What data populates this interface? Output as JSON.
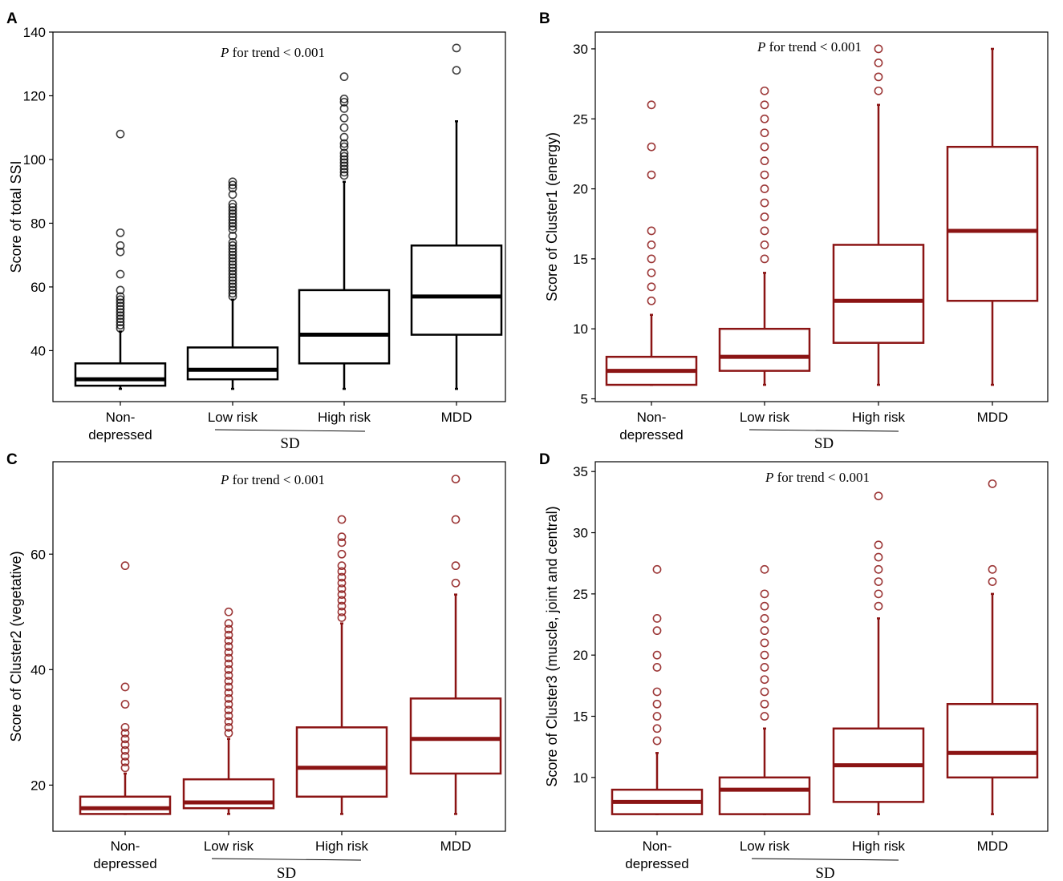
{
  "chart_data": [
    {
      "panel": "A",
      "type": "box",
      "color": "#000000",
      "ylabel": "Score of total SSI",
      "annotation": {
        "p": "P",
        "rest": " for trend < 0.001"
      },
      "ylim": [
        24,
        140
      ],
      "yticks": [
        40,
        60,
        80,
        100,
        120,
        140
      ],
      "categories": [
        "Non-\ndepressed",
        "Low risk",
        "High risk",
        "MDD"
      ],
      "group_label": "SD",
      "boxes": [
        {
          "min": 28,
          "q1": 29,
          "median": 31,
          "q3": 36,
          "max": 46,
          "outliers": [
            47,
            48,
            49,
            50,
            51,
            52,
            53,
            54,
            55,
            56,
            57,
            59,
            64,
            71,
            73,
            77,
            108
          ]
        },
        {
          "min": 28,
          "q1": 31,
          "median": 34,
          "q3": 41,
          "max": 56,
          "outliers": [
            57,
            58,
            59,
            60,
            61,
            62,
            63,
            64,
            65,
            66,
            67,
            68,
            69,
            70,
            71,
            72,
            73,
            74,
            76,
            78,
            79,
            80,
            81,
            82,
            83,
            84,
            85,
            86,
            89,
            91,
            92,
            93
          ]
        },
        {
          "min": 28,
          "q1": 36,
          "median": 45,
          "q3": 59,
          "max": 93,
          "outliers": [
            95,
            96,
            97,
            98,
            99,
            100,
            101,
            102,
            104,
            105,
            107,
            110,
            113,
            116,
            118,
            119,
            126
          ]
        },
        {
          "min": 28,
          "q1": 45,
          "median": 57,
          "q3": 73,
          "max": 112,
          "outliers": [
            128,
            135
          ]
        }
      ]
    },
    {
      "panel": "B",
      "type": "box",
      "color": "#8b1414",
      "ylabel": "Score of Cluster1 (energy)",
      "annotation": {
        "p": "P",
        "rest": " for trend < 0.001"
      },
      "ylim": [
        4.8,
        31.2
      ],
      "yticks": [
        5,
        10,
        15,
        20,
        25,
        30
      ],
      "categories": [
        "Non-\ndepressed",
        "Low risk",
        "High risk",
        "MDD"
      ],
      "group_label": "SD",
      "boxes": [
        {
          "min": 6,
          "q1": 6,
          "median": 7,
          "q3": 8,
          "max": 11,
          "outliers": [
            12,
            13,
            14,
            15,
            16,
            17,
            21,
            23,
            26
          ]
        },
        {
          "min": 6,
          "q1": 7,
          "median": 8,
          "q3": 10,
          "max": 14,
          "outliers": [
            15,
            16,
            17,
            18,
            19,
            20,
            21,
            22,
            23,
            24,
            25,
            26,
            27
          ]
        },
        {
          "min": 6,
          "q1": 9,
          "median": 12,
          "q3": 16,
          "max": 26,
          "outliers": [
            27,
            28,
            29,
            30
          ]
        },
        {
          "min": 6,
          "q1": 12,
          "median": 17,
          "q3": 23,
          "max": 30,
          "outliers": []
        }
      ]
    },
    {
      "panel": "C",
      "type": "box",
      "color": "#8b1414",
      "ylabel": "Score of Cluster2 (vegetative)",
      "annotation": {
        "p": "P",
        "rest": " for trend < 0.001"
      },
      "ylim": [
        12,
        76
      ],
      "yticks": [
        20,
        40,
        60
      ],
      "categories": [
        "Non-\ndepressed",
        "Low risk",
        "High risk",
        "MDD"
      ],
      "group_label": "SD",
      "boxes": [
        {
          "min": 15,
          "q1": 15,
          "median": 16,
          "q3": 18,
          "max": 22,
          "outliers": [
            23,
            24,
            25,
            26,
            27,
            28,
            29,
            30,
            34,
            37,
            58
          ]
        },
        {
          "min": 15,
          "q1": 16,
          "median": 17,
          "q3": 21,
          "max": 28,
          "outliers": [
            29,
            30,
            31,
            32,
            33,
            34,
            35,
            36,
            37,
            38,
            39,
            40,
            41,
            42,
            43,
            44,
            45,
            46,
            47,
            48,
            50
          ]
        },
        {
          "min": 15,
          "q1": 18,
          "median": 23,
          "q3": 30,
          "max": 48,
          "outliers": [
            49,
            50,
            51,
            52,
            53,
            54,
            55,
            56,
            57,
            58,
            60,
            62,
            63,
            66
          ]
        },
        {
          "min": 15,
          "q1": 22,
          "median": 28,
          "q3": 35,
          "max": 53,
          "outliers": [
            55,
            58,
            66,
            73
          ]
        }
      ]
    },
    {
      "panel": "D",
      "type": "box",
      "color": "#8b1414",
      "ylabel": "Score of Cluster3 (muscle, joint and central)",
      "annotation": {
        "p": "P",
        "rest": " for trend < 0.001"
      },
      "ylim": [
        5.6,
        35.8
      ],
      "yticks": [
        10,
        15,
        20,
        25,
        30,
        35
      ],
      "categories": [
        "Non-\ndepressed",
        "Low risk",
        "High risk",
        "MDD"
      ],
      "group_label": "SD",
      "boxes": [
        {
          "min": 7,
          "q1": 7,
          "median": 8,
          "q3": 9,
          "max": 12,
          "outliers": [
            13,
            14,
            15,
            16,
            17,
            19,
            20,
            22,
            23,
            27
          ]
        },
        {
          "min": 7,
          "q1": 7,
          "median": 9,
          "q3": 10,
          "max": 14,
          "outliers": [
            15,
            16,
            17,
            18,
            19,
            20,
            21,
            22,
            23,
            24,
            25,
            27
          ]
        },
        {
          "min": 7,
          "q1": 8,
          "median": 11,
          "q3": 14,
          "max": 23,
          "outliers": [
            24,
            25,
            26,
            27,
            28,
            29,
            33
          ]
        },
        {
          "min": 7,
          "q1": 10,
          "median": 12,
          "q3": 16,
          "max": 25,
          "outliers": [
            26,
            27,
            34
          ]
        }
      ]
    }
  ]
}
